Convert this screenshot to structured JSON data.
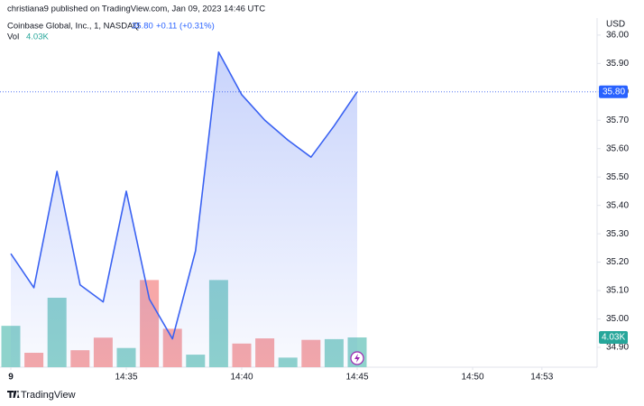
{
  "header": {
    "byline": "christiana9 published on TradingView.com, Jan 09, 2023 14:46 UTC",
    "symbol": "Coinbase Global, Inc., 1, NASDAQ",
    "last": "35.80",
    "change": "+0.11 (+0.31%)",
    "vol_label": "Vol",
    "currency": "USD"
  },
  "footer": {
    "brand": "TradingView"
  },
  "chart_data": {
    "type": "area",
    "x": [
      "14:30",
      "14:31",
      "14:32",
      "14:33",
      "14:34",
      "14:35",
      "14:36",
      "14:37",
      "14:38",
      "14:39",
      "14:40",
      "14:41",
      "14:42",
      "14:43",
      "14:44",
      "14:45"
    ],
    "series": [
      {
        "name": "Coinbase Global, Inc., 1, NASDAQ",
        "color": "#3a62f2",
        "values": [
          35.23,
          35.11,
          35.52,
          35.12,
          35.06,
          35.45,
          35.07,
          34.93,
          35.24,
          35.94,
          35.79,
          35.7,
          35.63,
          35.57,
          35.68,
          35.8
        ]
      }
    ],
    "volume": {
      "name": "Vol",
      "up_color": "#8fd3cc",
      "down_color": "#f7a8a8",
      "values": [
        5600,
        1950,
        9400,
        2300,
        4000,
        2600,
        11800,
        5200,
        1700,
        11800,
        3200,
        3900,
        1300,
        3700,
        3800,
        4030
      ],
      "directions": [
        "up",
        "down",
        "up",
        "down",
        "down",
        "up",
        "down",
        "down",
        "up",
        "up",
        "down",
        "down",
        "up",
        "down",
        "up",
        "up"
      ],
      "value_labels": [
        null,
        null,
        null,
        null,
        null,
        null,
        null,
        null,
        null,
        null,
        null,
        null,
        null,
        null,
        null,
        "4.03K"
      ],
      "ylim": [
        0,
        47260
      ]
    },
    "xlim": [
      "14:30",
      "14:55"
    ],
    "xticks": [
      {
        "value": "14:30",
        "label": "9"
      },
      "14:35",
      "14:40",
      "14:45",
      "14:50",
      "14:53"
    ],
    "ylim": [
      34.83,
      36.06
    ],
    "yticks": [
      {
        "value": 34.9,
        "label": "34.90"
      },
      {
        "value": 35.0,
        "label": "35.00"
      },
      {
        "value": 35.1,
        "label": "35.10"
      },
      {
        "value": 35.2,
        "label": "35.20"
      },
      {
        "value": 35.3,
        "label": "35.30"
      },
      {
        "value": 35.4,
        "label": "35.40"
      },
      {
        "value": 35.5,
        "label": "35.50"
      },
      {
        "value": 35.6,
        "label": "35.60"
      },
      {
        "value": 35.7,
        "label": "35.70"
      },
      {
        "value": 35.8,
        "label": "35.80"
      },
      {
        "value": 35.9,
        "label": "35.90"
      },
      {
        "value": 36.0,
        "label": "36.00"
      }
    ],
    "grid": false
  }
}
